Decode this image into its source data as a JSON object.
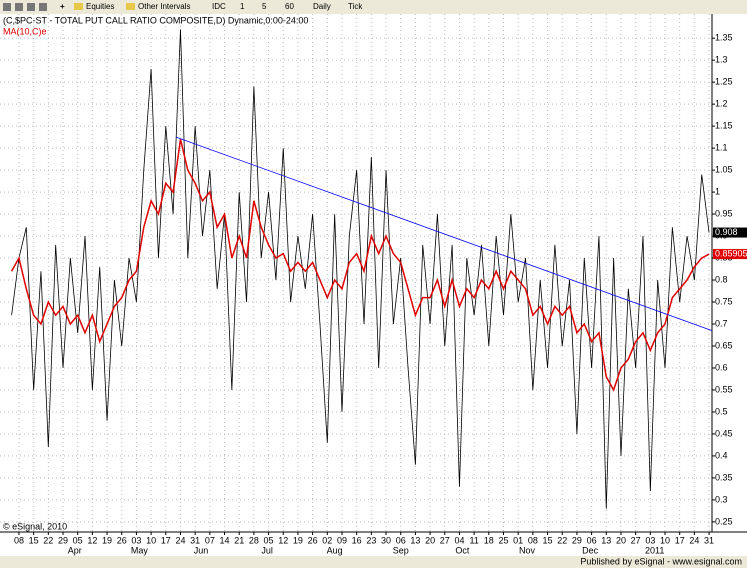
{
  "toolbar": [
    "Equities",
    "Other Intervals",
    "IDC",
    "1",
    "5",
    "60",
    "Daily",
    "Tick"
  ],
  "chart_data": {
    "type": "line",
    "title": "(C,$PC-ST - TOTAL PUT CALL RATIO COMPOSITE,D) Dynamic,0:00-24:00",
    "copyright": "© eSignal, 2010",
    "footer": "Published by eSignal - www.esignal.com",
    "x": [
      -0.5,
      0,
      0.5,
      1,
      1.5,
      2,
      2.5,
      3,
      3.5,
      4,
      4.5,
      5,
      5.5,
      6,
      6.5,
      7,
      7.5,
      8,
      8.5,
      9,
      9.5,
      10,
      10.5,
      11,
      11.5,
      12,
      12.5,
      13,
      13.5,
      14,
      14.5,
      15,
      15.5,
      16,
      16.5,
      17,
      17.5,
      18,
      18.5,
      19,
      19.5,
      20,
      20.5,
      21,
      21.5,
      22,
      22.5,
      23,
      23.5,
      24,
      24.5,
      25,
      25.5,
      26,
      26.5,
      27,
      27.5,
      28,
      28.5,
      29,
      29.5,
      30,
      30.5,
      31,
      31.5,
      32,
      32.5,
      33,
      33.5,
      34,
      34.5,
      35,
      35.5,
      36,
      36.5,
      37,
      37.5,
      38,
      38.5,
      39,
      39.5,
      40,
      40.5,
      41,
      41.5,
      42,
      42.5,
      43,
      43.5,
      44,
      44.5,
      45,
      45.5,
      46,
      46.5,
      47
    ],
    "series": [
      {
        "name": "$PC-ST",
        "color": "#000000",
        "values": [
          0.72,
          0.85,
          0.92,
          0.55,
          0.82,
          0.42,
          0.88,
          0.6,
          0.85,
          0.68,
          0.9,
          0.55,
          0.83,
          0.48,
          0.8,
          0.65,
          0.85,
          0.75,
          1.05,
          1.28,
          0.85,
          1.15,
          0.95,
          1.37,
          0.85,
          1.15,
          0.9,
          1.05,
          0.78,
          0.95,
          0.55,
          1.0,
          0.75,
          1.24,
          0.85,
          1.0,
          0.8,
          1.1,
          0.75,
          0.9,
          0.78,
          0.95,
          0.7,
          0.43,
          0.95,
          0.5,
          0.9,
          1.05,
          0.7,
          1.08,
          0.6,
          1.05,
          0.7,
          0.85,
          0.6,
          0.38,
          0.88,
          0.7,
          0.95,
          0.65,
          0.88,
          0.33,
          0.85,
          0.72,
          0.88,
          0.65,
          0.9,
          0.72,
          0.95,
          0.75,
          0.85,
          0.55,
          0.8,
          0.6,
          0.88,
          0.65,
          0.8,
          0.45,
          0.85,
          0.6,
          0.9,
          0.28,
          0.85,
          0.4,
          0.78,
          0.6,
          0.9,
          0.32,
          0.8,
          0.6,
          0.92,
          0.75,
          0.9,
          0.8,
          1.04,
          0.908
        ]
      },
      {
        "name": "MA(10,C)e",
        "color": "#e00000",
        "values": [
          0.82,
          0.85,
          0.78,
          0.72,
          0.7,
          0.75,
          0.72,
          0.74,
          0.7,
          0.72,
          0.68,
          0.72,
          0.66,
          0.7,
          0.74,
          0.76,
          0.8,
          0.82,
          0.92,
          0.98,
          0.95,
          1.02,
          1.0,
          1.12,
          1.05,
          1.02,
          0.98,
          1.0,
          0.92,
          0.95,
          0.85,
          0.9,
          0.85,
          0.98,
          0.92,
          0.88,
          0.85,
          0.86,
          0.82,
          0.84,
          0.82,
          0.84,
          0.8,
          0.76,
          0.8,
          0.78,
          0.84,
          0.86,
          0.82,
          0.9,
          0.86,
          0.9,
          0.86,
          0.84,
          0.78,
          0.72,
          0.76,
          0.76,
          0.8,
          0.74,
          0.8,
          0.74,
          0.78,
          0.76,
          0.8,
          0.78,
          0.82,
          0.78,
          0.82,
          0.8,
          0.78,
          0.72,
          0.74,
          0.7,
          0.74,
          0.72,
          0.74,
          0.68,
          0.7,
          0.66,
          0.68,
          0.58,
          0.55,
          0.6,
          0.62,
          0.66,
          0.68,
          0.64,
          0.68,
          0.7,
          0.76,
          0.78,
          0.8,
          0.83,
          0.85,
          0.859056
        ]
      }
    ],
    "trendline": {
      "x": [
        10.7,
        47.2
      ],
      "y": [
        1.125,
        0.685
      ],
      "color": "#0000ff"
    },
    "xlim": [
      -0.95,
      47.2
    ],
    "xticks": [
      {
        "value": 0,
        "label": "08"
      },
      {
        "value": 1,
        "label": "15"
      },
      {
        "value": 2,
        "label": "22"
      },
      {
        "value": 3,
        "label": "29"
      },
      {
        "value": 4,
        "label": "05"
      },
      {
        "value": 5,
        "label": "12"
      },
      {
        "value": 6,
        "label": "19"
      },
      {
        "value": 7,
        "label": "26"
      },
      {
        "value": 8,
        "label": "03"
      },
      {
        "value": 9,
        "label": "10"
      },
      {
        "value": 10,
        "label": "17"
      },
      {
        "value": 11,
        "label": "24"
      },
      {
        "value": 12,
        "label": "31"
      },
      {
        "value": 13,
        "label": "07"
      },
      {
        "value": 14,
        "label": "14"
      },
      {
        "value": 15,
        "label": "21"
      },
      {
        "value": 16,
        "label": "28"
      },
      {
        "value": 17,
        "label": "05"
      },
      {
        "value": 18,
        "label": "12"
      },
      {
        "value": 19,
        "label": "19"
      },
      {
        "value": 20,
        "label": "26"
      },
      {
        "value": 21,
        "label": "02"
      },
      {
        "value": 22,
        "label": "09"
      },
      {
        "value": 23,
        "label": "16"
      },
      {
        "value": 24,
        "label": "23"
      },
      {
        "value": 25,
        "label": "30"
      },
      {
        "value": 26,
        "label": "06"
      },
      {
        "value": 27,
        "label": "13"
      },
      {
        "value": 28,
        "label": "20"
      },
      {
        "value": 29,
        "label": "27"
      },
      {
        "value": 30,
        "label": "04"
      },
      {
        "value": 31,
        "label": "11"
      },
      {
        "value": 32,
        "label": "18"
      },
      {
        "value": 33,
        "label": "25"
      },
      {
        "value": 34,
        "label": "01"
      },
      {
        "value": 35,
        "label": "08"
      },
      {
        "value": 36,
        "label": "15"
      },
      {
        "value": 37,
        "label": "22"
      },
      {
        "value": 38,
        "label": "29"
      },
      {
        "value": 39,
        "label": "06"
      },
      {
        "value": 40,
        "label": "13"
      },
      {
        "value": 41,
        "label": "20"
      },
      {
        "value": 42,
        "label": "27"
      },
      {
        "value": 43,
        "label": "03"
      },
      {
        "value": 44,
        "label": "10"
      },
      {
        "value": 45,
        "label": "17"
      },
      {
        "value": 46,
        "label": "24"
      },
      {
        "value": 47,
        "label": "31"
      }
    ],
    "x_groups": [
      {
        "value": 3.8,
        "label": "Apr"
      },
      {
        "value": 8.2,
        "label": "May"
      },
      {
        "value": 12.4,
        "label": "Jun"
      },
      {
        "value": 16.9,
        "label": "Jul"
      },
      {
        "value": 21.5,
        "label": "Aug"
      },
      {
        "value": 26,
        "label": "Sep"
      },
      {
        "value": 30.2,
        "label": "Oct"
      },
      {
        "value": 34.6,
        "label": "Nov"
      },
      {
        "value": 38.9,
        "label": "Dec"
      },
      {
        "value": 43.3,
        "label": "2011"
      }
    ],
    "ylim": [
      0.227,
      1.405
    ],
    "yticks": [
      0.25,
      0.3,
      0.35,
      0.4,
      0.45,
      0.5,
      0.55,
      0.6,
      0.65,
      0.7,
      0.75,
      0.8,
      0.85,
      0.9,
      0.95,
      1,
      1.05,
      1.1,
      1.15,
      1.2,
      1.25,
      1.3,
      1.35
    ],
    "grid": true
  }
}
